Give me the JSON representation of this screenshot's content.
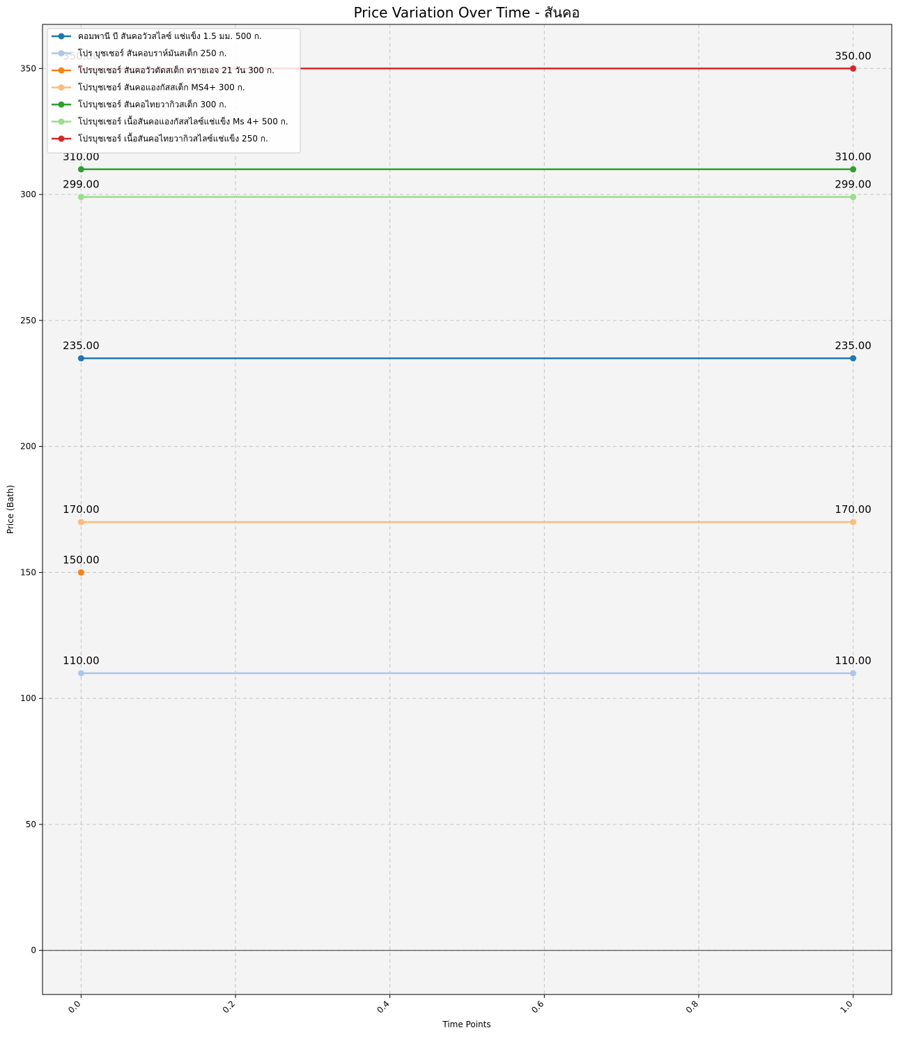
{
  "chart_data": {
    "type": "line",
    "title": "Price Variation Over Time - สันคอ",
    "xlabel": "Time Points",
    "ylabel": "Price (Bath)",
    "xlim": [
      -0.05,
      1.05
    ],
    "ylim": [
      -17.5,
      367.5
    ],
    "x_ticks": [
      0.0,
      0.2,
      0.4,
      0.6,
      0.8,
      1.0
    ],
    "x_tick_labels": [
      "0.0",
      "0.2",
      "0.4",
      "0.6",
      "0.8",
      "1.0"
    ],
    "y_ticks": [
      0,
      50,
      100,
      150,
      200,
      250,
      300,
      350
    ],
    "y_tick_labels": [
      "0",
      "50",
      "100",
      "150",
      "200",
      "250",
      "300",
      "350"
    ],
    "grid": true,
    "zero_line": true,
    "legend_position": "top-left",
    "series": [
      {
        "name": "คอมพานี บี สันคอวัวสไลซ์ แช่แข็ง 1.5 มม. 500 ก.",
        "color": "#1f77b4",
        "x": [
          0,
          1
        ],
        "values": [
          235,
          235
        ],
        "labels": [
          "235.00",
          "235.00"
        ]
      },
      {
        "name": "โปร บุชเชอร์ สันคอบราห์มันสเต็ก 250 ก.",
        "color": "#aec7e8",
        "x": [
          0,
          1
        ],
        "values": [
          110,
          110
        ],
        "labels": [
          "110.00",
          "110.00"
        ]
      },
      {
        "name": "โปรบุชเชอร์ สันคอวัวตัดสเต็ก ดรายเอจ 21 วัน 300 ก.",
        "color": "#ff7f0e",
        "x": [
          0
        ],
        "values": [
          150
        ],
        "labels": [
          "150.00"
        ]
      },
      {
        "name": "โปรบุชเชอร์ สันคอแองกัสสเต็ก MS4+ 300 ก.",
        "color": "#ffbb78",
        "x": [
          0,
          1
        ],
        "values": [
          170,
          170
        ],
        "labels": [
          "170.00",
          "170.00"
        ]
      },
      {
        "name": "โปรบุชเชอร์ สันคอไทยวากิวสเต็ก 300 ก.",
        "color": "#2ca02c",
        "x": [
          0,
          1
        ],
        "values": [
          310,
          310
        ],
        "labels": [
          "310.00",
          "310.00"
        ]
      },
      {
        "name": "โปรบุชเชอร์ เนื้อสันคอแองกัสสไลซ์แช่แข็ง Ms 4+ 500 ก.",
        "color": "#98df8a",
        "x": [
          0,
          1
        ],
        "values": [
          299,
          299
        ],
        "labels": [
          "299.00",
          "299.00"
        ]
      },
      {
        "name": "โปรบุชเชอร์ เนื้อสันคอไทยวากิวสไลซ์แช่แข็ง 250 ก.",
        "color": "#d62728",
        "x": [
          0,
          1
        ],
        "values": [
          350,
          350
        ],
        "labels": [
          "350.00",
          "350.00"
        ]
      }
    ]
  }
}
